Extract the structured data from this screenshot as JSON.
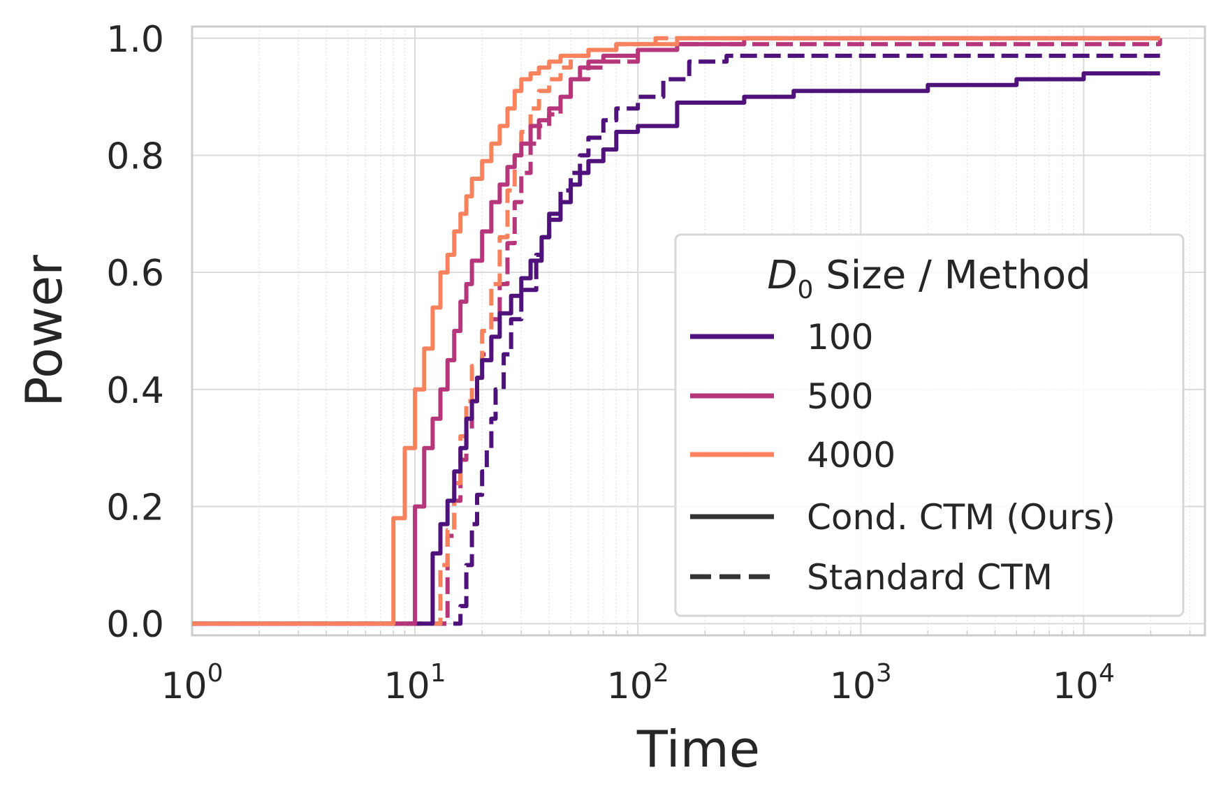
{
  "chart_data": {
    "type": "line",
    "xscale": "log",
    "xlabel": "Time",
    "ylabel": "Power",
    "xlim": [
      1,
      35000
    ],
    "ylim": [
      -0.02,
      1.02
    ],
    "grid": true,
    "x_ticks": [
      {
        "value": 1,
        "base": "10",
        "exp": "0"
      },
      {
        "value": 10,
        "base": "10",
        "exp": "1"
      },
      {
        "value": 100,
        "base": "10",
        "exp": "2"
      },
      {
        "value": 1000,
        "base": "10",
        "exp": "3"
      },
      {
        "value": 10000,
        "base": "10",
        "exp": "4"
      }
    ],
    "y_ticks": [
      {
        "value": 0.0,
        "label": "0.0"
      },
      {
        "value": 0.2,
        "label": "0.2"
      },
      {
        "value": 0.4,
        "label": "0.4"
      },
      {
        "value": 0.6,
        "label": "0.6"
      },
      {
        "value": 0.8,
        "label": "0.8"
      },
      {
        "value": 1.0,
        "label": "1.0"
      }
    ],
    "legend": {
      "title_var": "D",
      "title_sub": "0",
      "title_rest": " Size / Method",
      "position": "lower-right",
      "size_entries": [
        {
          "label": "100",
          "color": "#4f127b"
        },
        {
          "label": "500",
          "color": "#b5367a"
        },
        {
          "label": "4000",
          "color": "#f7825d"
        }
      ],
      "style_entries": [
        {
          "label": "Cond. CTM (Ours)",
          "style": "solid",
          "color": "#333333"
        },
        {
          "label": "Standard CTM",
          "style": "dashed",
          "color": "#333333"
        }
      ]
    },
    "series": [
      {
        "name": "100 / Standard CTM",
        "size": "100",
        "method": "Standard CTM",
        "style": "dashed",
        "color": "#4f127b",
        "x": [
          1,
          13,
          14,
          16,
          17,
          18,
          19,
          20,
          21,
          22,
          23,
          25,
          27,
          30,
          35,
          37,
          40,
          45,
          50,
          55,
          60,
          70,
          80,
          100,
          130,
          170,
          250,
          22000
        ],
        "y": [
          0,
          0,
          0,
          0.03,
          0.1,
          0.17,
          0.22,
          0.26,
          0.3,
          0.35,
          0.4,
          0.46,
          0.52,
          0.57,
          0.63,
          0.66,
          0.7,
          0.74,
          0.77,
          0.8,
          0.83,
          0.86,
          0.88,
          0.9,
          0.93,
          0.96,
          0.97,
          0.97
        ]
      },
      {
        "name": "500 / Standard CTM",
        "size": "500",
        "method": "Standard CTM",
        "style": "dashed",
        "color": "#b5367a",
        "x": [
          1,
          13,
          14,
          15,
          16,
          17,
          18,
          19,
          20,
          22,
          24,
          26,
          28,
          30,
          33,
          36,
          40,
          45,
          50,
          60,
          70,
          100,
          150,
          22000
        ],
        "y": [
          0,
          0,
          0.15,
          0.21,
          0.28,
          0.33,
          0.38,
          0.42,
          0.46,
          0.52,
          0.58,
          0.65,
          0.72,
          0.77,
          0.82,
          0.85,
          0.87,
          0.9,
          0.93,
          0.95,
          0.96,
          0.98,
          0.99,
          1.0
        ]
      },
      {
        "name": "4000 / Standard CTM",
        "size": "4000",
        "method": "Standard CTM",
        "style": "dashed",
        "color": "#f7825d",
        "x": [
          1,
          12,
          13,
          14,
          15,
          16,
          17,
          18,
          20,
          22,
          24,
          26,
          28,
          30,
          33,
          36,
          40,
          45,
          50,
          60,
          80,
          120,
          22000
        ],
        "y": [
          0,
          0,
          0.1,
          0.16,
          0.24,
          0.32,
          0.38,
          0.44,
          0.5,
          0.58,
          0.66,
          0.74,
          0.8,
          0.84,
          0.88,
          0.91,
          0.93,
          0.95,
          0.97,
          0.98,
          0.99,
          1.0,
          1.0
        ]
      },
      {
        "name": "100 / Cond. CTM (Ours)",
        "size": "100",
        "method": "Cond. CTM (Ours)",
        "style": "solid",
        "color": "#4f127b",
        "x": [
          1,
          11,
          12,
          13,
          14,
          15,
          16,
          17,
          18,
          19,
          20,
          22,
          24,
          27,
          30,
          33,
          37,
          40,
          45,
          50,
          55,
          60,
          70,
          80,
          100,
          140,
          150,
          200,
          300,
          500,
          1000,
          2000,
          5000,
          10000,
          22000
        ],
        "y": [
          0,
          0,
          0.12,
          0.17,
          0.21,
          0.26,
          0.3,
          0.35,
          0.38,
          0.42,
          0.45,
          0.49,
          0.53,
          0.56,
          0.59,
          0.62,
          0.66,
          0.69,
          0.72,
          0.75,
          0.77,
          0.79,
          0.81,
          0.84,
          0.85,
          0.85,
          0.89,
          0.89,
          0.9,
          0.91,
          0.91,
          0.92,
          0.93,
          0.94,
          0.94
        ]
      },
      {
        "name": "500 / Cond. CTM (Ours)",
        "size": "500",
        "method": "Cond. CTM (Ours)",
        "style": "solid",
        "color": "#b5367a",
        "x": [
          1,
          9,
          10,
          11,
          12,
          13,
          14,
          15,
          16,
          17,
          18,
          20,
          22,
          24,
          26,
          28,
          30,
          33,
          36,
          40,
          45,
          50,
          55,
          60,
          70,
          100,
          150,
          300,
          600,
          22000
        ],
        "y": [
          0,
          0,
          0.2,
          0.3,
          0.35,
          0.4,
          0.45,
          0.5,
          0.55,
          0.58,
          0.62,
          0.67,
          0.72,
          0.75,
          0.78,
          0.8,
          0.82,
          0.85,
          0.86,
          0.88,
          0.9,
          0.93,
          0.95,
          0.96,
          0.97,
          0.98,
          0.99,
          1.0,
          1.0,
          1.0
        ]
      },
      {
        "name": "4000 / Cond. CTM (Ours)",
        "size": "4000",
        "method": "Cond. CTM (Ours)",
        "style": "solid",
        "color": "#f7825d",
        "x": [
          1,
          7,
          8,
          9,
          10,
          11,
          12,
          13,
          14,
          15,
          16,
          17,
          18,
          20,
          22,
          24,
          26,
          28,
          30,
          33,
          36,
          40,
          45,
          50,
          60,
          80,
          120,
          150,
          22000
        ],
        "y": [
          0,
          0,
          0.18,
          0.3,
          0.4,
          0.47,
          0.54,
          0.6,
          0.63,
          0.67,
          0.7,
          0.73,
          0.76,
          0.79,
          0.82,
          0.85,
          0.88,
          0.91,
          0.93,
          0.94,
          0.95,
          0.96,
          0.97,
          0.97,
          0.98,
          0.99,
          0.99,
          1.0,
          1.0
        ]
      }
    ]
  }
}
